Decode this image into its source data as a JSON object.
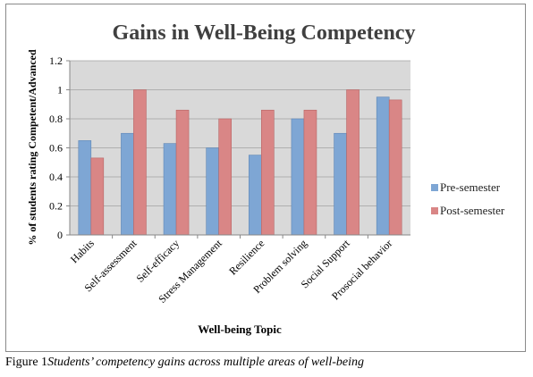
{
  "chart_data": {
    "type": "bar",
    "title": "Gains in Well-Being Competency",
    "xlabel": "Well-being Topic",
    "ylabel": "% of students rating Competent/Advanced",
    "categories": [
      "Habits",
      "Self-assessment",
      "Self-efficacy",
      "Stress Management",
      "Resilience",
      "Problem solving",
      "Social Support",
      "Prosocial behavior"
    ],
    "series": [
      {
        "name": "Pre-semester",
        "values": [
          0.65,
          0.7,
          0.63,
          0.6,
          0.55,
          0.8,
          0.7,
          0.95
        ],
        "color": "#7ea6d4"
      },
      {
        "name": "Post-semester",
        "values": [
          0.53,
          1.0,
          0.86,
          0.8,
          0.86,
          0.86,
          1.0,
          0.93
        ],
        "color": "#d98686"
      }
    ],
    "yticks": [
      "0",
      "0.2",
      "0.4",
      "0.6",
      "0.8",
      "1",
      "1.2"
    ],
    "ylim": [
      0,
      1.2
    ],
    "grid": true,
    "legend": "right"
  },
  "caption": {
    "label": "Figure 1",
    "text": "Students’ competency gains across multiple areas of well-being"
  }
}
